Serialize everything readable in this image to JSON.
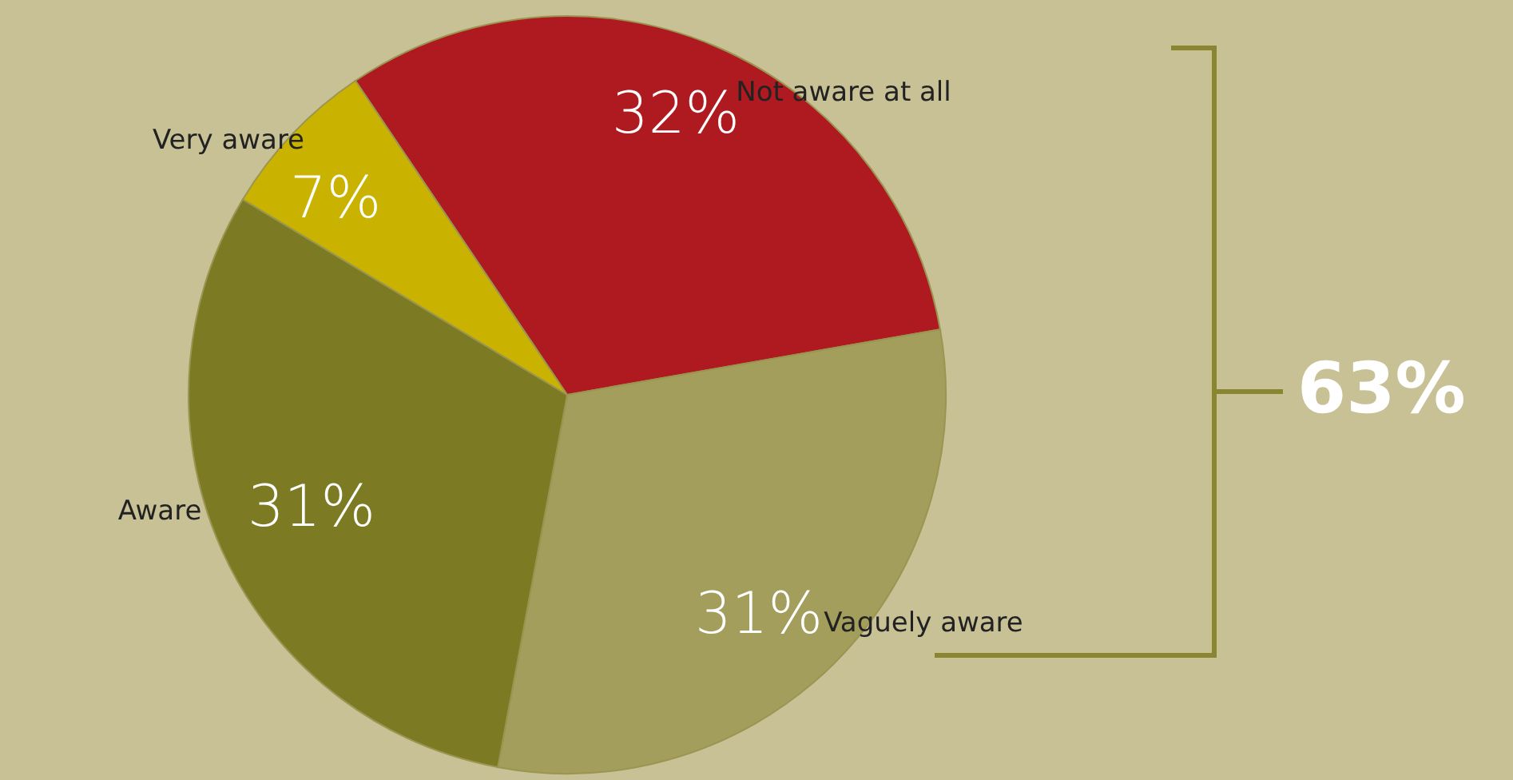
{
  "chart_data": {
    "type": "pie",
    "categories": [
      "Not aware at all",
      "Vaguely aware",
      "Aware",
      "Very aware"
    ],
    "values": [
      32,
      31,
      31,
      7
    ],
    "colors": [
      "#ae1a20",
      "#a39e5c",
      "#7d7a24",
      "#c9b200"
    ],
    "value_labels": [
      "32%",
      "31%",
      "31%",
      "7%"
    ],
    "annotations": [
      "63%"
    ]
  }
}
